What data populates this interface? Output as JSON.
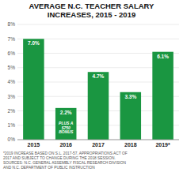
{
  "chart_data": {
    "type": "bar",
    "title": "AVERAGE N.C. TEACHER SALARY\nINCREASES, 2015 - 2019",
    "categories": [
      "2015",
      "2016",
      "2017",
      "2018",
      "2019*"
    ],
    "values": [
      7.0,
      2.2,
      4.7,
      3.3,
      6.1
    ],
    "value_labels": [
      "7.0%",
      "2.2%",
      "4.7%",
      "3.3%",
      "6.1%"
    ],
    "data_labels": true,
    "color": "#1a9641",
    "ylim": [
      0,
      8
    ],
    "yticks": [
      {
        "value": 0,
        "label": "0%"
      },
      {
        "value": 1,
        "label": "1%"
      },
      {
        "value": 2,
        "label": "2%"
      },
      {
        "value": 3,
        "label": "3%"
      },
      {
        "value": 4,
        "label": "4%"
      },
      {
        "value": 5,
        "label": "5%"
      },
      {
        "value": 6,
        "label": "6%"
      },
      {
        "value": 7,
        "label": "7%"
      },
      {
        "value": 8,
        "label": "8%"
      }
    ],
    "grid": true,
    "annotations": [
      {
        "text": "PLUS A\n$750\nBONUS",
        "x": "2016"
      }
    ],
    "footnotes": [
      "*2019 INCREASE BASED ON S.L. 2017-57, APPROPRIATIONS ACT OF",
      "2017 AND SUBJECT TO CHANGE DURING THE 2018 SESSION.",
      "SOURCES: N.C. GENERAL ASSEMBLY FISCAL RESEARCH DIVISION",
      "AND N.C. DEPARTMENT OF PUBLIC INSTRUCTION"
    ]
  }
}
